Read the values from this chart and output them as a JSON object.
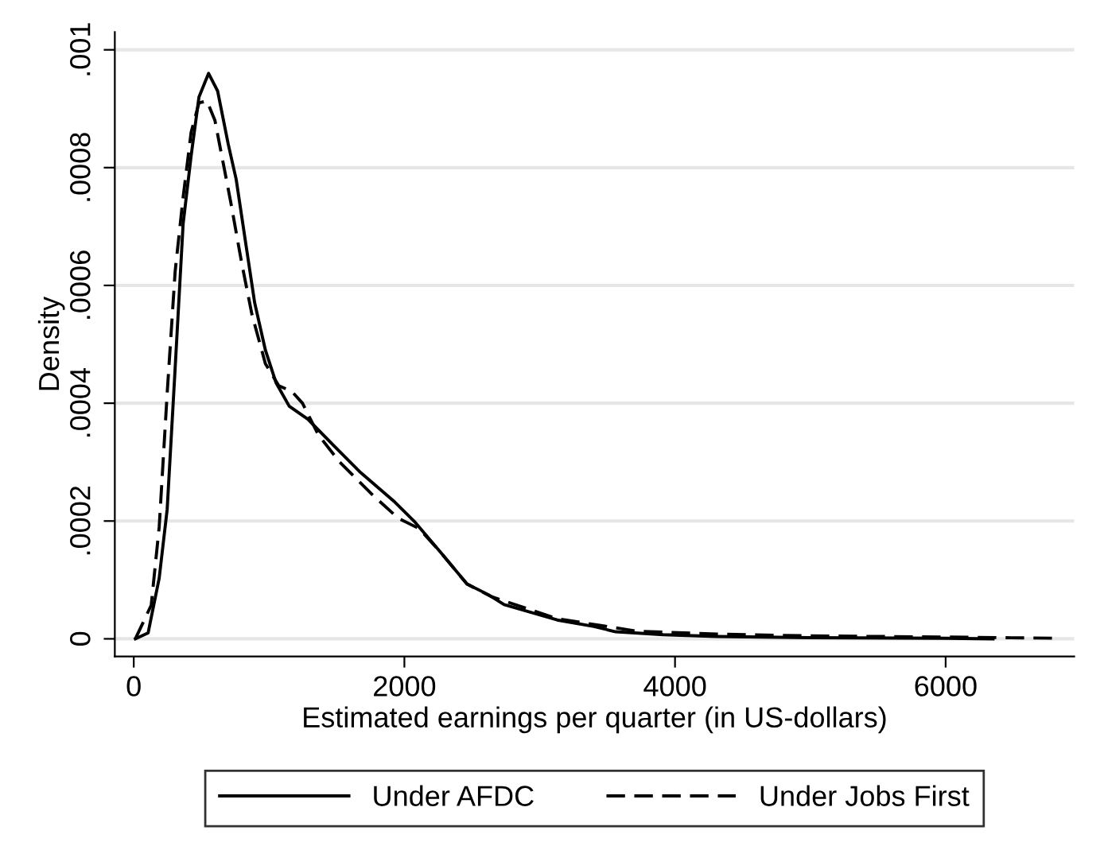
{
  "chart_data": {
    "type": "line",
    "xlabel": "Estimated earnings per quarter (in US-dollars)",
    "ylabel": "Density",
    "xlim": [
      -140,
      6950
    ],
    "xticks": [
      0,
      2000,
      4000,
      6000
    ],
    "ylim": [
      -3e-05,
      0.00103
    ],
    "yticks": [
      {
        "value": 0,
        "label": "0"
      },
      {
        "value": 0.0002,
        "label": ".0002"
      },
      {
        "value": 0.0004,
        "label": ".0004"
      },
      {
        "value": 0.0006,
        "label": ".0006"
      },
      {
        "value": 0.0008,
        "label": ".0008"
      },
      {
        "value": 0.001,
        "label": ".001"
      }
    ],
    "grid": "y",
    "legend": "bottom",
    "series": [
      {
        "name": "Under AFDC",
        "color": "#000000",
        "line_style": "solid",
        "x": [
          12,
          106,
          188,
          247,
          306,
          365,
          424,
          482,
          553,
          620,
          698,
          757,
          835,
          894,
          973,
          1051,
          1149,
          1286,
          1482,
          1678,
          1930,
          2071,
          2267,
          2463,
          2620,
          2737,
          3129,
          3400,
          3561,
          3914,
          4306,
          5000,
          6000,
          6350
        ],
        "values": [
          0,
          1e-05,
          0.000103,
          0.00022,
          0.00046,
          0.000705,
          0.00082,
          0.00092,
          0.00096,
          0.00093,
          0.00084,
          0.00078,
          0.00066,
          0.00057,
          0.00049,
          0.000435,
          0.000395,
          0.000373,
          0.000327,
          0.000282,
          0.000232,
          0.0002,
          0.000147,
          9.3e-05,
          7.5e-05,
          5.8e-05,
          3.2e-05,
          2.1e-05,
          1.2e-05,
          7e-06,
          4e-06,
          2e-06,
          1e-06,
          0
        ]
      },
      {
        "name": "Under Jobs First",
        "color": "#000000",
        "line_style": "dashed",
        "x": [
          12,
          129,
          188,
          247,
          306,
          365,
          424,
          482,
          541,
          600,
          659,
          718,
          796,
          874,
          973,
          1071,
          1168,
          1247,
          1365,
          1522,
          1757,
          1953,
          2110,
          2267,
          2463,
          2639,
          3129,
          3443,
          3718,
          4306,
          5000,
          6000,
          6800
        ],
        "values": [
          0,
          5.7e-05,
          0.00019,
          0.000417,
          0.000624,
          0.00075,
          0.00086,
          0.00091,
          0.000913,
          0.00088,
          0.00081,
          0.00074,
          0.00064,
          0.00055,
          0.000467,
          0.00043,
          0.00042,
          0.0004,
          0.000346,
          0.0003,
          0.000246,
          0.000205,
          0.000187,
          0.000147,
          9.3e-05,
          7.2e-05,
          3.4e-05,
          2.3e-05,
          1.3e-05,
          8e-06,
          5e-06,
          3e-06,
          1e-06
        ]
      }
    ]
  }
}
